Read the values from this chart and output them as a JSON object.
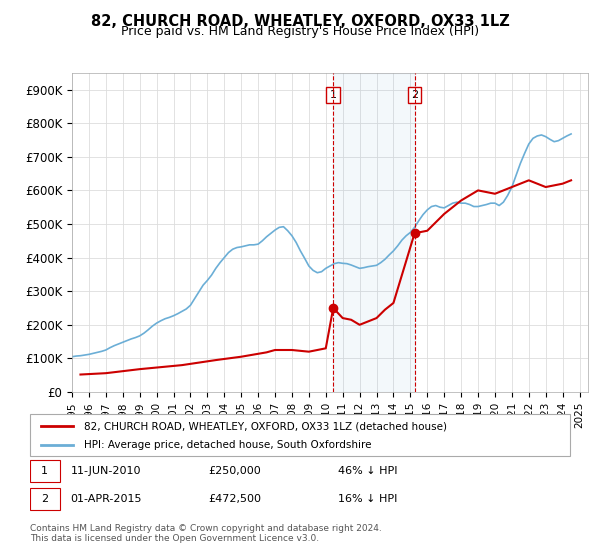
{
  "title": "82, CHURCH ROAD, WHEATLEY, OXFORD, OX33 1LZ",
  "subtitle": "Price paid vs. HM Land Registry's House Price Index (HPI)",
  "ylabel_ticks": [
    "£0",
    "£100K",
    "£200K",
    "£300K",
    "£400K",
    "£500K",
    "£600K",
    "£700K",
    "£800K",
    "£900K"
  ],
  "ytick_vals": [
    0,
    100000,
    200000,
    300000,
    400000,
    500000,
    600000,
    700000,
    800000,
    900000
  ],
  "ylim": [
    0,
    950000
  ],
  "xlim_start": 1995.0,
  "xlim_end": 2025.5,
  "hpi_color": "#6baed6",
  "price_color": "#cc0000",
  "marker1_date": 2010.44,
  "marker1_price": 250000,
  "marker2_date": 2015.25,
  "marker2_price": 472500,
  "legend_label_red": "82, CHURCH ROAD, WHEATLEY, OXFORD, OX33 1LZ (detached house)",
  "legend_label_blue": "HPI: Average price, detached house, South Oxfordshire",
  "annotation1_label": "1",
  "annotation2_label": "2",
  "note1_text": "1    11-JUN-2010         £250,000         46% ↓ HPI",
  "note2_text": "2    01-APR-2015         £472,500         16% ↓ HPI",
  "footer": "Contains HM Land Registry data © Crown copyright and database right 2024.\nThis data is licensed under the Open Government Licence v3.0.",
  "hpi_data_x": [
    1995.0,
    1995.25,
    1995.5,
    1995.75,
    1996.0,
    1996.25,
    1996.5,
    1996.75,
    1997.0,
    1997.25,
    1997.5,
    1997.75,
    1998.0,
    1998.25,
    1998.5,
    1998.75,
    1999.0,
    1999.25,
    1999.5,
    1999.75,
    2000.0,
    2000.25,
    2000.5,
    2000.75,
    2001.0,
    2001.25,
    2001.5,
    2001.75,
    2002.0,
    2002.25,
    2002.5,
    2002.75,
    2003.0,
    2003.25,
    2003.5,
    2003.75,
    2004.0,
    2004.25,
    2004.5,
    2004.75,
    2005.0,
    2005.25,
    2005.5,
    2005.75,
    2006.0,
    2006.25,
    2006.5,
    2006.75,
    2007.0,
    2007.25,
    2007.5,
    2007.75,
    2008.0,
    2008.25,
    2008.5,
    2008.75,
    2009.0,
    2009.25,
    2009.5,
    2009.75,
    2010.0,
    2010.25,
    2010.5,
    2010.75,
    2011.0,
    2011.25,
    2011.5,
    2011.75,
    2012.0,
    2012.25,
    2012.5,
    2012.75,
    2013.0,
    2013.25,
    2013.5,
    2013.75,
    2014.0,
    2014.25,
    2014.5,
    2014.75,
    2015.0,
    2015.25,
    2015.5,
    2015.75,
    2016.0,
    2016.25,
    2016.5,
    2016.75,
    2017.0,
    2017.25,
    2017.5,
    2017.75,
    2018.0,
    2018.25,
    2018.5,
    2018.75,
    2019.0,
    2019.25,
    2019.5,
    2019.75,
    2020.0,
    2020.25,
    2020.5,
    2020.75,
    2021.0,
    2021.25,
    2021.5,
    2021.75,
    2022.0,
    2022.25,
    2022.5,
    2022.75,
    2023.0,
    2023.25,
    2023.5,
    2023.75,
    2024.0,
    2024.25,
    2024.5
  ],
  "hpi_data_y": [
    105000,
    107000,
    108000,
    110000,
    112000,
    115000,
    118000,
    121000,
    125000,
    132000,
    138000,
    143000,
    148000,
    153000,
    158000,
    162000,
    167000,
    175000,
    185000,
    196000,
    205000,
    212000,
    218000,
    222000,
    227000,
    233000,
    240000,
    247000,
    258000,
    278000,
    298000,
    318000,
    332000,
    348000,
    368000,
    385000,
    400000,
    415000,
    425000,
    430000,
    432000,
    435000,
    438000,
    438000,
    440000,
    450000,
    462000,
    472000,
    482000,
    490000,
    492000,
    480000,
    465000,
    445000,
    420000,
    398000,
    375000,
    362000,
    355000,
    358000,
    368000,
    375000,
    382000,
    385000,
    383000,
    382000,
    378000,
    373000,
    368000,
    370000,
    373000,
    375000,
    377000,
    385000,
    395000,
    408000,
    420000,
    435000,
    452000,
    465000,
    475000,
    490000,
    510000,
    528000,
    542000,
    552000,
    555000,
    550000,
    548000,
    555000,
    562000,
    565000,
    562000,
    562000,
    558000,
    552000,
    552000,
    555000,
    558000,
    562000,
    562000,
    555000,
    565000,
    585000,
    610000,
    645000,
    680000,
    710000,
    738000,
    755000,
    762000,
    765000,
    760000,
    752000,
    745000,
    748000,
    755000,
    762000,
    768000
  ],
  "price_data_x": [
    1995.5,
    1997.0,
    1999.0,
    2001.5,
    2003.5,
    2005.0,
    2006.5,
    2007.0,
    2008.0,
    2009.0,
    2010.0,
    2010.44,
    2011.0,
    2011.5,
    2012.0,
    2013.0,
    2013.5,
    2014.0,
    2015.25,
    2016.0,
    2017.0,
    2018.0,
    2019.0,
    2020.0,
    2021.0,
    2022.0,
    2023.0,
    2024.0,
    2024.5
  ],
  "price_data_y": [
    52000,
    56000,
    68000,
    80000,
    95000,
    105000,
    118000,
    125000,
    125000,
    120000,
    130000,
    250000,
    220000,
    215000,
    200000,
    220000,
    245000,
    265000,
    472500,
    480000,
    530000,
    570000,
    600000,
    590000,
    610000,
    630000,
    610000,
    620000,
    630000
  ]
}
